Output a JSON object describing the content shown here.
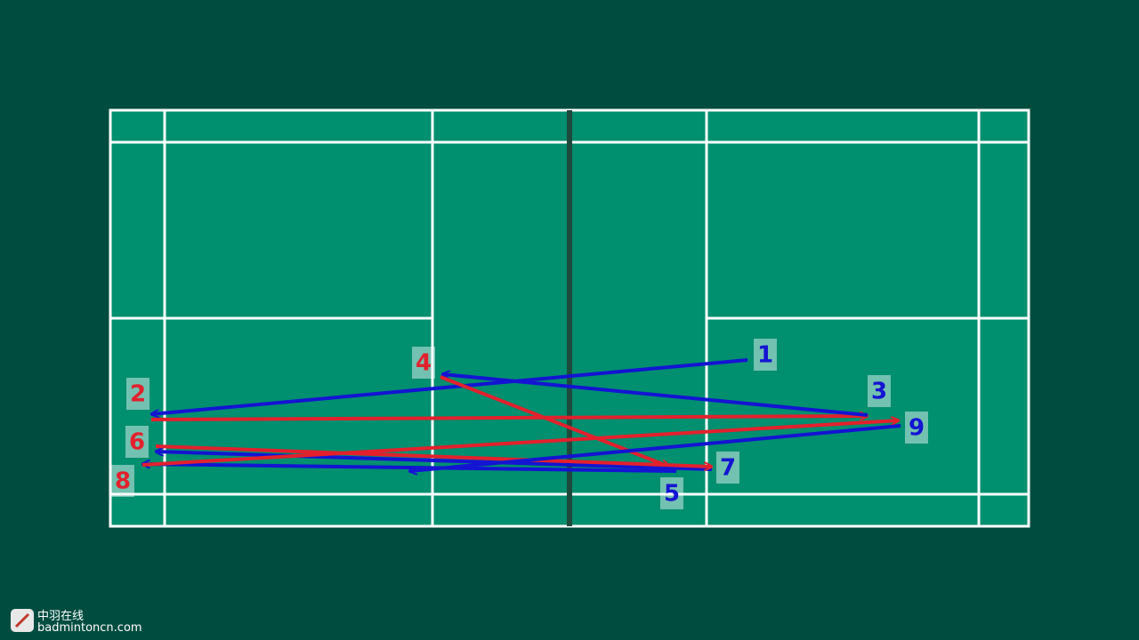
{
  "labels": [
    {
      "text": "1",
      "color": "#1414d2"
    },
    {
      "text": "2",
      "color": "#e3202c"
    },
    {
      "text": "3",
      "color": "#1414d2"
    },
    {
      "text": "4",
      "color": "#e3202c"
    },
    {
      "text": "5",
      "color": "#1414d2"
    },
    {
      "text": "6",
      "color": "#e3202c"
    },
    {
      "text": "7",
      "color": "#1414d2"
    },
    {
      "text": "8",
      "color": "#e3202c"
    },
    {
      "text": "9",
      "color": "#1414d2"
    }
  ],
  "watermark": {
    "name": "中羽在线",
    "site": "badmintoncn.com"
  }
}
